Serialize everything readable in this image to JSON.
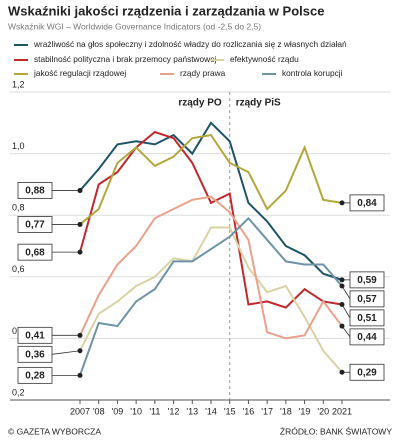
{
  "chart_data": {
    "type": "line",
    "title": "Wskaźniki jakości rządzenia i zarządzania w Polsce",
    "subtitle": "Wskaźnik WGI – Worldwide Governance Indicators (od -2,5 do 2,5)",
    "annotations": [
      "rządy PO",
      "rządy PiS"
    ],
    "footer_left": "© GAZETA WYBORCZA",
    "footer_right": "ŹRÓDŁO: BANK ŚWIATOWY",
    "categories": [
      "2007",
      "'08",
      "'09",
      "'10",
      "'11",
      "'12",
      "'13",
      "'14",
      "'15",
      "'16",
      "'17",
      "'18",
      "'19",
      "'20",
      "2021"
    ],
    "ylim": [
      0.2,
      1.2
    ],
    "yticks": [
      {
        "value": 0.2,
        "label": "0,2"
      },
      {
        "value": 0.4,
        "label": "0,4"
      },
      {
        "value": 0.6,
        "label": "0,6"
      },
      {
        "value": 0.8,
        "label": "0,8"
      },
      {
        "value": 1.0,
        "label": "1,0"
      },
      {
        "value": 1.2,
        "label": "1,2"
      }
    ],
    "grid": true,
    "series": [
      {
        "name": "wrażliwość na głos społeczny i zdolność władzy do rozliczania się z własnych działań",
        "color": "#1f5468",
        "values": [
          0.88,
          0.95,
          1.03,
          1.04,
          1.03,
          1.06,
          1.0,
          1.1,
          1.04,
          0.84,
          0.78,
          0.7,
          0.67,
          0.61,
          0.59
        ],
        "value_labels": [
          "0,88",
          null,
          null,
          null,
          null,
          null,
          null,
          null,
          null,
          null,
          null,
          null,
          null,
          null,
          "0,59"
        ]
      },
      {
        "name": "stabilność polityczna i brak przemocy państwowej",
        "color": "#c0282d",
        "values": [
          0.68,
          0.9,
          0.94,
          1.02,
          1.07,
          1.05,
          0.97,
          0.84,
          0.87,
          0.51,
          0.52,
          0.5,
          0.56,
          0.52,
          0.51
        ],
        "value_labels": [
          "0,68",
          null,
          null,
          null,
          null,
          null,
          null,
          null,
          null,
          null,
          null,
          null,
          null,
          null,
          "0,51"
        ]
      },
      {
        "name": "efektywność rządu",
        "color": "#d8d3a2",
        "values": [
          0.36,
          0.48,
          0.52,
          0.57,
          0.6,
          0.66,
          0.65,
          0.76,
          0.76,
          0.63,
          0.55,
          0.57,
          0.47,
          0.36,
          0.29
        ],
        "value_labels": [
          "0,36",
          null,
          null,
          null,
          null,
          null,
          null,
          null,
          null,
          null,
          null,
          null,
          null,
          null,
          "0,29"
        ]
      },
      {
        "name": "jakość regulacji rządowej",
        "color": "#b3a73c",
        "values": [
          0.77,
          0.82,
          0.97,
          1.02,
          0.96,
          0.99,
          1.05,
          1.06,
          0.97,
          0.94,
          0.82,
          0.88,
          1.02,
          0.85,
          0.84
        ],
        "value_labels": [
          "0,77",
          null,
          null,
          null,
          null,
          null,
          null,
          null,
          null,
          null,
          null,
          null,
          null,
          null,
          "0,84"
        ]
      },
      {
        "name": "rządy prawa",
        "color": "#eaa18c",
        "values": [
          0.41,
          0.54,
          0.64,
          0.7,
          0.79,
          0.82,
          0.85,
          0.86,
          0.81,
          0.72,
          0.42,
          0.4,
          0.41,
          0.52,
          0.44
        ],
        "value_labels": [
          "0,41",
          null,
          null,
          null,
          null,
          null,
          null,
          null,
          null,
          null,
          null,
          null,
          null,
          null,
          "0,44"
        ]
      },
      {
        "name": "kontrola korupcji",
        "color": "#6f93a6",
        "values": [
          0.28,
          0.45,
          0.44,
          0.52,
          0.56,
          0.65,
          0.65,
          0.69,
          0.73,
          0.79,
          0.72,
          0.65,
          0.64,
          0.64,
          0.57
        ],
        "value_labels": [
          "0,28",
          null,
          null,
          null,
          null,
          null,
          null,
          null,
          null,
          null,
          null,
          null,
          null,
          null,
          "0,57"
        ]
      }
    ]
  }
}
